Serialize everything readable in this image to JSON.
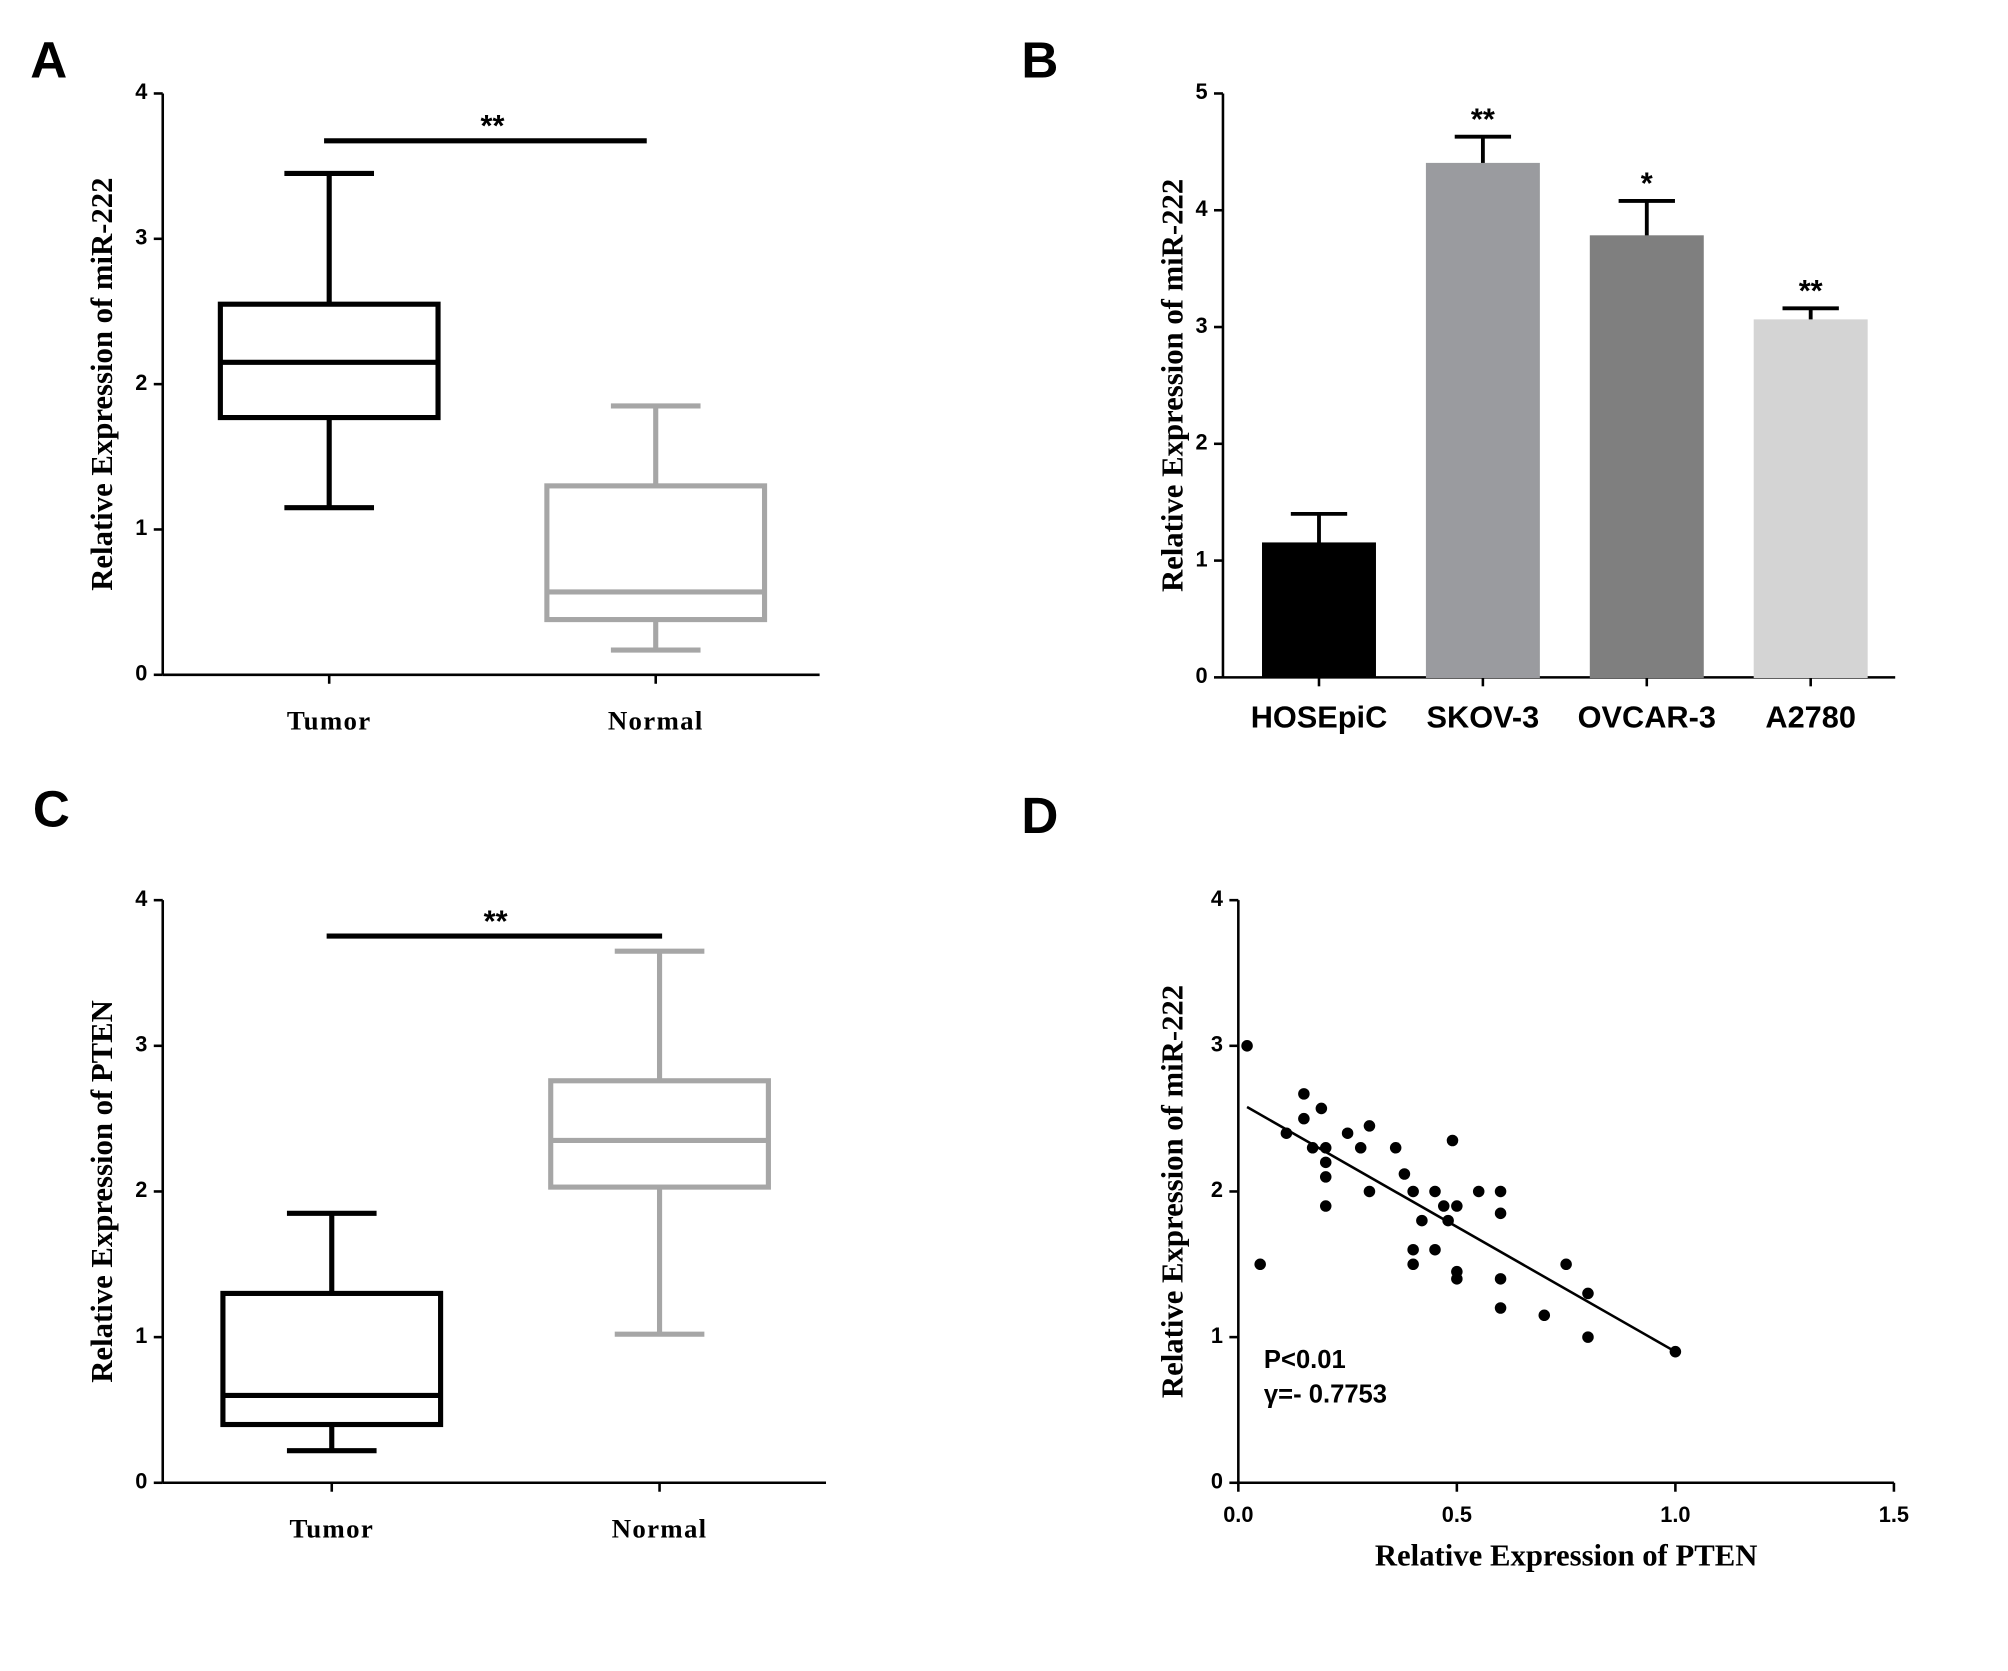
{
  "chart_data": [
    {
      "type": "box",
      "panel_label": "A",
      "ylabel": "Relative Expression of miR-222",
      "categories": [
        "Tumor",
        "Normal"
      ],
      "colors": [
        "#000000",
        "#a6a6a6"
      ],
      "stats": [
        {
          "whisker_low": 1.15,
          "q1": 1.77,
          "median": 2.15,
          "q3": 2.55,
          "whisker_high": 3.45
        },
        {
          "whisker_low": 0.17,
          "q1": 0.38,
          "median": 0.57,
          "q3": 1.3,
          "whisker_high": 1.85
        }
      ],
      "ylim": [
        0,
        4
      ],
      "yticks": [
        0,
        1,
        2,
        3,
        4
      ],
      "annotation": "**"
    },
    {
      "type": "bar",
      "panel_label": "B",
      "ylabel": "Relative Expression of miR-222",
      "categories": [
        "HOSEpiC",
        "SKOV-3",
        "OVCAR-3",
        "A2780"
      ],
      "values": [
        1.15,
        4.4,
        3.78,
        3.06
      ],
      "errors": [
        0.25,
        0.23,
        0.3,
        0.1
      ],
      "colors": [
        "#000000",
        "#9a9b9f",
        "#7f7f7f",
        "#d4d4d4"
      ],
      "annotations": [
        null,
        "**",
        "*",
        "**"
      ],
      "ylim": [
        0,
        5
      ],
      "yticks": [
        0,
        1,
        2,
        3,
        4,
        5
      ]
    },
    {
      "type": "box",
      "panel_label": "C",
      "ylabel": "Relative Expression of PTEN",
      "categories": [
        "Tumor",
        "Normal"
      ],
      "colors": [
        "#000000",
        "#a6a6a6"
      ],
      "stats": [
        {
          "whisker_low": 0.22,
          "q1": 0.4,
          "median": 0.6,
          "q3": 1.3,
          "whisker_high": 1.85
        },
        {
          "whisker_low": 1.02,
          "q1": 2.03,
          "median": 2.35,
          "q3": 2.76,
          "whisker_high": 3.65
        }
      ],
      "ylim": [
        0,
        4
      ],
      "yticks": [
        0,
        1,
        2,
        3,
        4
      ],
      "annotation": "**"
    },
    {
      "type": "scatter",
      "panel_label": "D",
      "xlabel": "Relative Expression of PTEN",
      "ylabel": "Relative Expression of miR-222",
      "x": [
        0.02,
        0.05,
        0.11,
        0.15,
        0.15,
        0.17,
        0.19,
        0.2,
        0.2,
        0.2,
        0.2,
        0.25,
        0.28,
        0.3,
        0.3,
        0.36,
        0.38,
        0.4,
        0.4,
        0.4,
        0.42,
        0.45,
        0.45,
        0.47,
        0.48,
        0.49,
        0.5,
        0.5,
        0.5,
        0.55,
        0.6,
        0.6,
        0.6,
        0.6,
        0.7,
        0.75,
        0.8,
        0.8,
        1.0
      ],
      "y": [
        3.0,
        1.5,
        2.4,
        2.67,
        2.5,
        2.3,
        2.57,
        2.3,
        2.2,
        2.1,
        1.9,
        2.4,
        2.3,
        2.45,
        2.0,
        2.3,
        2.12,
        2.0,
        1.6,
        1.5,
        1.8,
        2.0,
        1.6,
        1.9,
        1.8,
        2.35,
        1.45,
        1.4,
        1.9,
        2.0,
        2.0,
        1.85,
        1.4,
        1.2,
        1.15,
        1.5,
        1.3,
        1.0,
        0.9
      ],
      "fit_line": {
        "x": [
          0.02,
          1.0
        ],
        "y": [
          2.58,
          0.9
        ]
      },
      "annotations": [
        "P<0.01",
        "γ=- 0.7753"
      ],
      "xlim": [
        0,
        1.5
      ],
      "xticks": [
        {
          "value": 0,
          "label": "0.0"
        },
        0.5,
        {
          "value": 1,
          "label": "1.0"
        },
        1.5
      ],
      "ylim": [
        0,
        4
      ],
      "yticks": [
        0,
        1,
        2,
        3,
        4
      ]
    }
  ]
}
